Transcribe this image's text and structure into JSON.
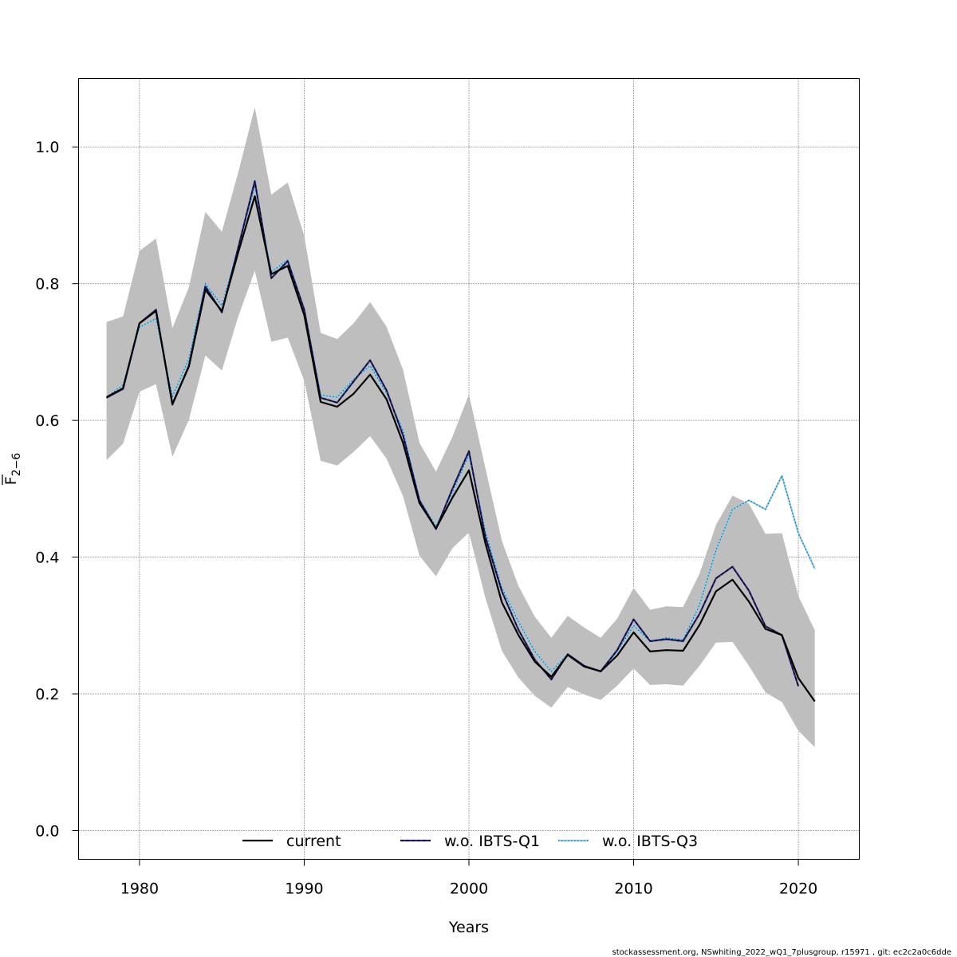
{
  "chart_data": {
    "type": "line",
    "title": "",
    "xlabel": "Years",
    "ylabel_main": "F",
    "ylabel_sub": "2−6",
    "xlim": [
      1976.3,
      2023.7
    ],
    "ylim": [
      -0.042,
      1.1
    ],
    "xticks": [
      1980,
      1990,
      2000,
      2010,
      2020
    ],
    "xtick_labels": [
      "1980",
      "1990",
      "2000",
      "2010",
      "2020"
    ],
    "yticks": [
      0.0,
      0.2,
      0.4,
      0.6,
      0.8,
      1.0
    ],
    "ytick_labels": [
      "0.0",
      "0.2",
      "0.4",
      "0.6",
      "0.8",
      "1.0"
    ],
    "grid": true,
    "legend_position": "bottom",
    "years": [
      1978,
      1979,
      1980,
      1981,
      1982,
      1983,
      1984,
      1985,
      1986,
      1987,
      1988,
      1989,
      1990,
      1991,
      1992,
      1993,
      1994,
      1995,
      1996,
      1997,
      1998,
      1999,
      2000,
      2001,
      2002,
      2003,
      2004,
      2005,
      2006,
      2007,
      2008,
      2009,
      2010,
      2011,
      2012,
      2013,
      2014,
      2015,
      2016,
      2017,
      2018,
      2019,
      2020,
      2021
    ],
    "band_upper": [
      0.744,
      0.752,
      0.848,
      0.866,
      0.735,
      0.795,
      0.905,
      0.876,
      0.963,
      1.058,
      0.93,
      0.948,
      0.87,
      0.728,
      0.719,
      0.742,
      0.773,
      0.737,
      0.674,
      0.567,
      0.525,
      0.576,
      0.638,
      0.53,
      0.424,
      0.358,
      0.313,
      0.282,
      0.314,
      0.297,
      0.282,
      0.31,
      0.355,
      0.323,
      0.328,
      0.327,
      0.376,
      0.447,
      0.49,
      0.478,
      0.434,
      0.435,
      0.343,
      0.293
    ],
    "band_lower": [
      0.542,
      0.566,
      0.642,
      0.653,
      0.547,
      0.601,
      0.695,
      0.673,
      0.752,
      0.819,
      0.715,
      0.721,
      0.658,
      0.541,
      0.534,
      0.554,
      0.577,
      0.544,
      0.489,
      0.402,
      0.372,
      0.413,
      0.436,
      0.34,
      0.263,
      0.224,
      0.197,
      0.18,
      0.21,
      0.199,
      0.191,
      0.212,
      0.237,
      0.213,
      0.214,
      0.212,
      0.241,
      0.275,
      0.276,
      0.241,
      0.202,
      0.188,
      0.146,
      0.122
    ],
    "series": [
      {
        "name": "current",
        "color": "#000000",
        "dash": "solid",
        "values": [
          0.634,
          0.647,
          0.742,
          0.76,
          0.624,
          0.679,
          0.791,
          0.76,
          0.846,
          0.928,
          0.814,
          0.826,
          0.754,
          0.627,
          0.62,
          0.639,
          0.667,
          0.631,
          0.567,
          0.479,
          0.442,
          0.487,
          0.527,
          0.42,
          0.334,
          0.286,
          0.247,
          0.225,
          0.257,
          0.24,
          0.233,
          0.256,
          0.29,
          0.262,
          0.264,
          0.263,
          0.301,
          0.35,
          0.367,
          0.335,
          0.295,
          0.286,
          0.223,
          0.189
        ]
      },
      {
        "name": "w.o. IBTS-Q1",
        "color": "#2b2676",
        "dash": "dashed",
        "values": [
          0.633,
          0.646,
          0.742,
          0.762,
          0.623,
          0.68,
          0.796,
          0.758,
          0.853,
          0.95,
          0.808,
          0.833,
          0.762,
          0.633,
          0.626,
          0.657,
          0.688,
          0.644,
          0.578,
          0.483,
          0.441,
          0.5,
          0.555,
          0.429,
          0.35,
          0.294,
          0.25,
          0.221,
          0.258,
          0.241,
          0.233,
          0.264,
          0.309,
          0.277,
          0.28,
          0.277,
          0.317,
          0.369,
          0.386,
          0.351,
          0.299,
          0.286,
          0.211
        ]
      },
      {
        "name": "w.o. IBTS-Q3",
        "color": "#87ceeb",
        "dash": "dotted",
        "values": [
          0.634,
          0.652,
          0.736,
          0.749,
          0.635,
          0.69,
          0.8,
          0.768,
          0.853,
          0.943,
          0.817,
          0.835,
          0.762,
          0.637,
          0.634,
          0.66,
          0.68,
          0.64,
          0.585,
          0.484,
          0.445,
          0.495,
          0.55,
          0.437,
          0.355,
          0.306,
          0.262,
          0.233,
          0.258,
          0.241,
          0.233,
          0.262,
          0.3,
          0.277,
          0.282,
          0.279,
          0.33,
          0.41,
          0.47,
          0.483,
          0.47,
          0.519,
          0.435,
          0.383
        ]
      }
    ],
    "band_color": "#bebebe"
  },
  "footer": "stockassessment.org, NSwhiting_2022_wQ1_7plusgroup, r15971 , git: ec2c2a0c6dde"
}
